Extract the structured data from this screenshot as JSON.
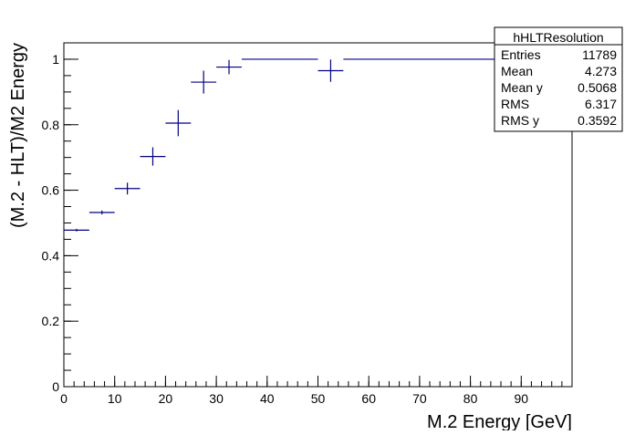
{
  "chart_data": {
    "type": "scatter",
    "title": "",
    "xlabel": "M.2 Energy [GeV]",
    "ylabel": "(M.2 - HLT)/M2 Energy",
    "xlim": [
      0,
      100
    ],
    "ylim": [
      0,
      1.05
    ],
    "x_ticks": [
      0,
      10,
      20,
      30,
      40,
      50,
      60,
      70,
      80,
      90
    ],
    "y_ticks": [
      0,
      0.2,
      0.4,
      0.6,
      0.8,
      1
    ],
    "x_tick_labels": [
      "0",
      "10",
      "20",
      "30",
      "40",
      "50",
      "60",
      "70",
      "80",
      "90"
    ],
    "y_tick_labels": [
      "0",
      "0.2",
      "0.4",
      "0.6",
      "0.8",
      "1"
    ],
    "grid": false,
    "marker_color": "#000080",
    "points": [
      {
        "x": 2.5,
        "xerr": 2.5,
        "y": 0.478,
        "yerr": 0.004
      },
      {
        "x": 7.5,
        "xerr": 2.5,
        "y": 0.532,
        "yerr": 0.006
      },
      {
        "x": 12.5,
        "xerr": 2.5,
        "y": 0.605,
        "yerr": 0.018
      },
      {
        "x": 17.5,
        "xerr": 2.5,
        "y": 0.703,
        "yerr": 0.028
      },
      {
        "x": 22.5,
        "xerr": 2.5,
        "y": 0.805,
        "yerr": 0.04
      },
      {
        "x": 27.5,
        "xerr": 2.5,
        "y": 0.93,
        "yerr": 0.035
      },
      {
        "x": 32.5,
        "xerr": 2.5,
        "y": 0.976,
        "yerr": 0.022
      },
      {
        "x": 42.5,
        "xerr": 7.5,
        "y": 1.0,
        "yerr": 0.0
      },
      {
        "x": 52.5,
        "xerr": 2.5,
        "y": 0.965,
        "yerr": 0.034
      },
      {
        "x": 77.5,
        "xerr": 22.5,
        "y": 1.0,
        "yerr": 0.0
      }
    ],
    "stats_box": {
      "title": "hHLTResolution",
      "rows": [
        {
          "label": "Entries",
          "value": "11789"
        },
        {
          "label": "Mean",
          "value": "4.273"
        },
        {
          "label": "Mean y",
          "value": "0.5068"
        },
        {
          "label": "RMS",
          "value": "6.317"
        },
        {
          "label": "RMS y",
          "value": "0.3592"
        }
      ]
    }
  }
}
